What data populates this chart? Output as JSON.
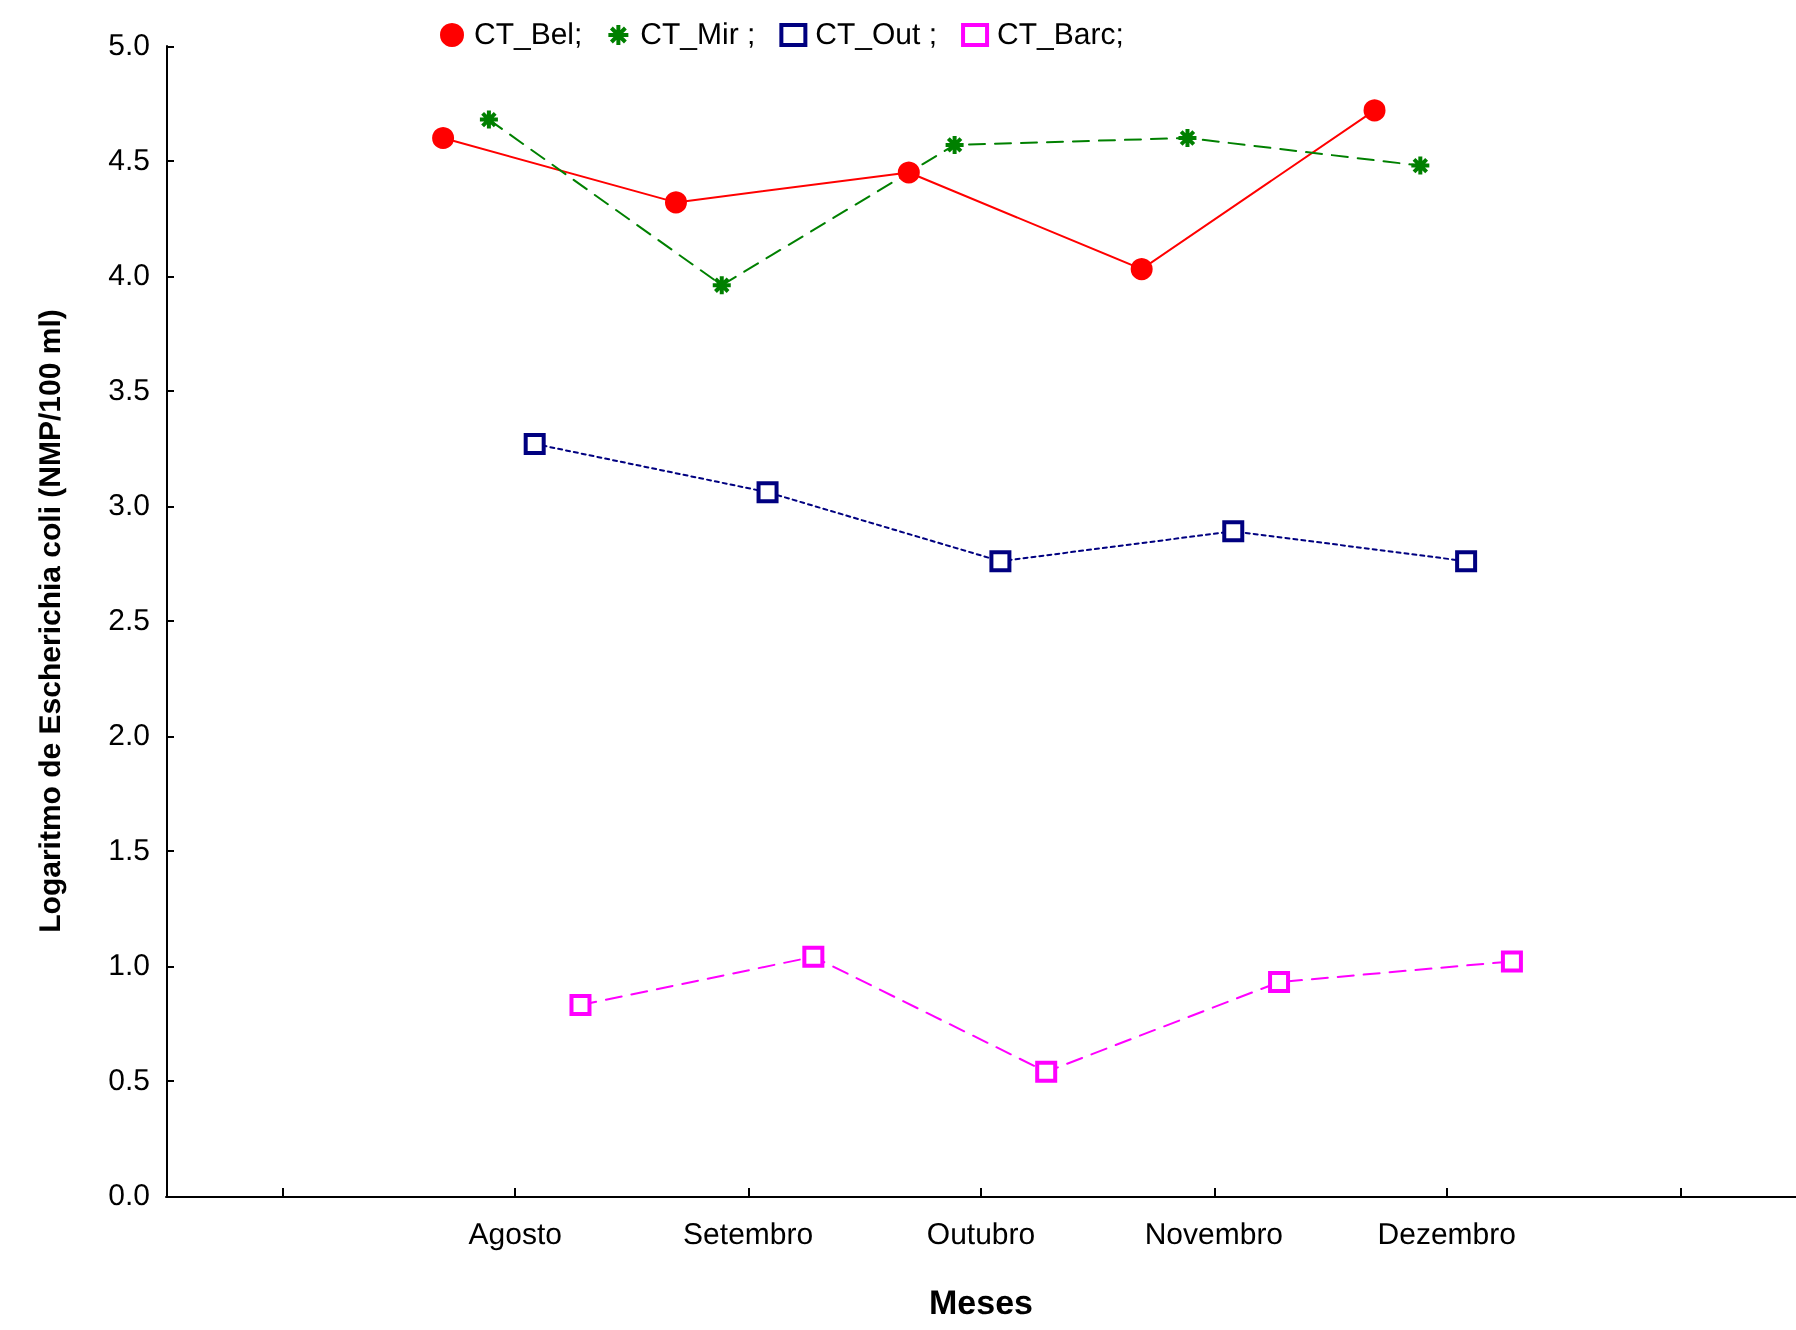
{
  "chart_data": {
    "type": "line",
    "xlabel": "Meses",
    "ylabel": "Logaritmo de Escherichia coli (NMP/100 ml)",
    "categories": [
      null,
      "Agosto",
      "Setembro",
      "Outubro",
      "Novembro",
      "Dezembro",
      null
    ],
    "series": [
      {
        "name": "CT_Bel;",
        "color": "#ff0000",
        "marker": "circle",
        "line_style": "solid",
        "values": [
          null,
          4.6,
          4.32,
          4.45,
          4.03,
          4.72,
          null
        ]
      },
      {
        "name": "CT_Mir ;",
        "color": "#008000",
        "marker": "cross",
        "line_style": "dashed",
        "values": [
          null,
          4.68,
          3.96,
          4.57,
          4.6,
          4.48,
          null
        ]
      },
      {
        "name": "CT_Out ;",
        "color": "#000080",
        "marker": "square",
        "line_style": "dotted",
        "values": [
          null,
          3.27,
          3.06,
          2.76,
          2.89,
          2.76,
          null
        ]
      },
      {
        "name": "CT_Barc;",
        "color": "#ff00ff",
        "marker": "square",
        "line_style": "dashed",
        "values": [
          null,
          0.83,
          1.04,
          0.54,
          0.93,
          1.02,
          null
        ]
      }
    ],
    "ylim": [
      0,
      5
    ],
    "yticks": [
      {
        "value": 0,
        "label": "0.0"
      },
      {
        "value": 0.5,
        "label": "0.5"
      },
      {
        "value": 1,
        "label": "1.0"
      },
      {
        "value": 1.5,
        "label": "1.5"
      },
      {
        "value": 2,
        "label": "2.0"
      },
      {
        "value": 2.5,
        "label": "2.5"
      },
      {
        "value": 3,
        "label": "3.0"
      },
      {
        "value": 3.5,
        "label": "3.5"
      },
      {
        "value": 4,
        "label": "4.0"
      },
      {
        "value": 4.5,
        "label": "4.5"
      },
      {
        "value": 5,
        "label": "5.0"
      }
    ],
    "grid": false,
    "legend": "top"
  }
}
